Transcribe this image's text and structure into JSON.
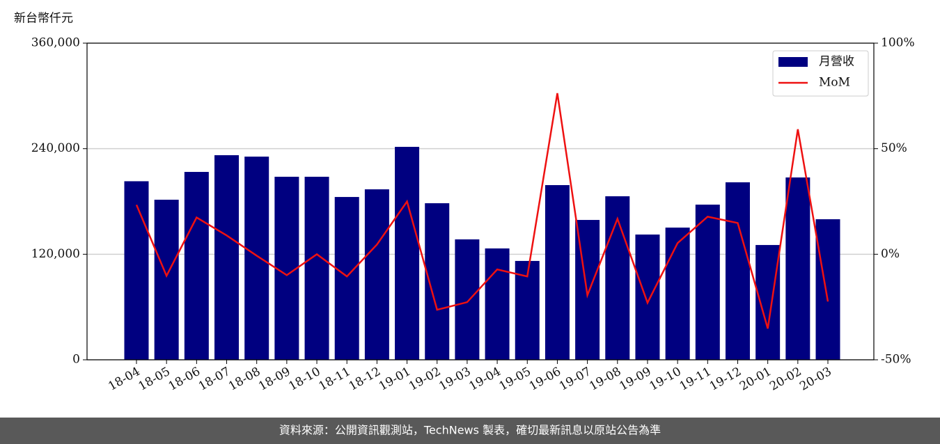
{
  "chart_data": {
    "type": "bar_line",
    "ylabel": "新台幣仟元",
    "categories": [
      "18-04",
      "18-05",
      "18-06",
      "18-07",
      "18-08",
      "18-09",
      "18-10",
      "18-11",
      "18-12",
      "19-01",
      "19-02",
      "19-03",
      "19-04",
      "19-05",
      "19-06",
      "19-07",
      "19-08",
      "19-09",
      "19-10",
      "19-11",
      "19-12",
      "20-01",
      "20-02",
      "20-03"
    ],
    "series": [
      {
        "name": "月營收",
        "type": "bar",
        "color": "#000080",
        "values": [
          203000,
          182000,
          213600,
          232600,
          231000,
          208100,
          208100,
          185100,
          193800,
          242100,
          178000,
          136900,
          126600,
          112400,
          198600,
          159000,
          185900,
          142400,
          150300,
          176400,
          201800,
          130500,
          207300,
          159800
        ]
      },
      {
        "name": "MoM",
        "type": "line",
        "axis": "y2",
        "color": "#ee1111",
        "values": [
          23.4,
          -10.2,
          17.4,
          8.9,
          -0.7,
          -9.9,
          0,
          -10.5,
          4.6,
          25,
          -26.3,
          -22.7,
          -7.2,
          -10.5,
          76.3,
          -19.4,
          16.8,
          -23,
          5.3,
          17.8,
          14.8,
          -35.2,
          59.2,
          -22.4
        ]
      }
    ],
    "ylim": [
      0,
      360000
    ],
    "yticks": [
      0,
      {
        "value": 120000,
        "label": "120,000"
      },
      {
        "value": 240000,
        "label": "240,000"
      },
      {
        "value": 360000,
        "label": "360,000"
      }
    ],
    "y2lim": [
      -50,
      100
    ],
    "y2ticks": [
      {
        "value": -50,
        "label": "-50%"
      },
      {
        "value": 0,
        "label": "0%"
      },
      {
        "value": 50,
        "label": "50%"
      },
      {
        "value": 100,
        "label": "100%"
      }
    ],
    "grid": true,
    "legend": "upper right"
  },
  "footer": {
    "source": "資料來源：公開資訊觀測站，TechNews 製表，確切最新訊息以原站公告為準"
  }
}
